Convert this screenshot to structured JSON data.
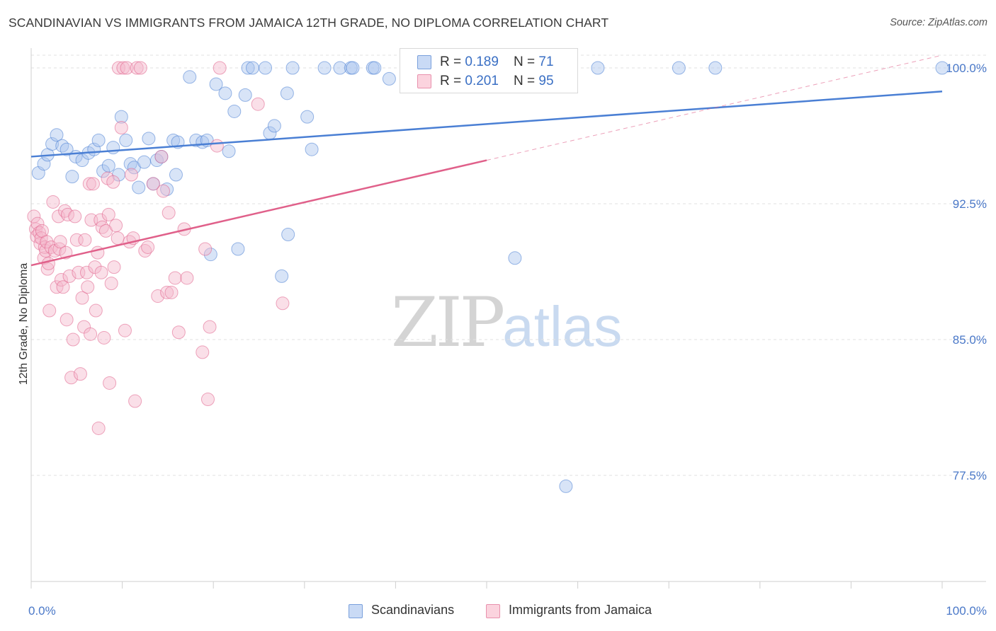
{
  "title": "SCANDINAVIAN VS IMMIGRANTS FROM JAMAICA 12TH GRADE, NO DIPLOMA CORRELATION CHART",
  "source": "Source: ZipAtlas.com",
  "watermark": {
    "zip": "ZIP",
    "atlas": "atlas"
  },
  "legend": {
    "rows": [
      {
        "r_label": "R = ",
        "r_value": "0.189",
        "n_label": "N = ",
        "n_value": "71",
        "color": "#a8c4ee"
      },
      {
        "r_label": "R = ",
        "r_value": "0.201",
        "n_label": "N = ",
        "n_value": "95",
        "color": "#f5b8cb"
      }
    ]
  },
  "bottom_legend": [
    {
      "label": "Scandinavians",
      "color": "#a8c4ee"
    },
    {
      "label": "Immigrants from Jamaica",
      "color": "#f5b8cb"
    }
  ],
  "chart_data": {
    "type": "scatter",
    "title": "SCANDINAVIAN VS IMMIGRANTS FROM JAMAICA 12TH GRADE, NO DIPLOMA CORRELATION CHART",
    "xlabel": "",
    "ylabel": "12th Grade, No Diploma",
    "xlim": [
      0,
      100
    ],
    "ylim": [
      70.0,
      100.8
    ],
    "y_ticks": [
      {
        "value": 100.0,
        "label": "100.0%"
      },
      {
        "value": 92.5,
        "label": "92.5%"
      },
      {
        "value": 85.0,
        "label": "85.0%"
      },
      {
        "value": 77.5,
        "label": "77.5%"
      }
    ],
    "x_tick_labels": [
      {
        "value": 0,
        "label": "0.0%"
      },
      {
        "value": 100,
        "label": "100.0%"
      }
    ],
    "grid": "horizontal dashed",
    "series": [
      {
        "name": "Scandinavians",
        "color": "#4a7fd4",
        "fill": "#a8c4ee",
        "trend": {
          "x0": 0,
          "y0": 95.1,
          "x1": 100,
          "y1": 98.7
        },
        "points": [
          [
            0.8,
            94.2
          ],
          [
            1.4,
            94.7
          ],
          [
            1.8,
            95.2
          ],
          [
            2.3,
            95.8
          ],
          [
            2.8,
            96.3
          ],
          [
            3.4,
            95.7
          ],
          [
            3.9,
            95.5
          ],
          [
            4.5,
            94.0
          ],
          [
            4.9,
            95.1
          ],
          [
            5.6,
            94.9
          ],
          [
            6.3,
            95.3
          ],
          [
            6.9,
            95.5
          ],
          [
            7.4,
            96.0
          ],
          [
            7.9,
            94.3
          ],
          [
            8.5,
            94.6
          ],
          [
            9.0,
            95.6
          ],
          [
            9.6,
            94.1
          ],
          [
            9.9,
            97.3
          ],
          [
            10.4,
            96.0
          ],
          [
            10.9,
            94.7
          ],
          [
            11.3,
            94.5
          ],
          [
            11.8,
            93.4
          ],
          [
            12.4,
            94.8
          ],
          [
            12.9,
            96.1
          ],
          [
            13.4,
            93.6
          ],
          [
            13.8,
            94.9
          ],
          [
            14.3,
            95.1
          ],
          [
            14.9,
            93.3
          ],
          [
            15.6,
            96.0
          ],
          [
            15.9,
            94.1
          ],
          [
            16.1,
            95.9
          ],
          [
            17.4,
            99.5
          ],
          [
            18.1,
            96.0
          ],
          [
            18.8,
            95.9
          ],
          [
            19.3,
            96.0
          ],
          [
            19.7,
            89.7
          ],
          [
            20.3,
            99.1
          ],
          [
            21.3,
            98.6
          ],
          [
            21.7,
            95.4
          ],
          [
            22.3,
            97.6
          ],
          [
            22.7,
            90.0
          ],
          [
            23.5,
            98.5
          ],
          [
            23.8,
            100.0
          ],
          [
            24.3,
            100.0
          ],
          [
            25.7,
            100.0
          ],
          [
            26.2,
            96.4
          ],
          [
            26.7,
            96.8
          ],
          [
            27.5,
            88.5
          ],
          [
            28.2,
            90.8
          ],
          [
            28.1,
            98.6
          ],
          [
            28.7,
            100.0
          ],
          [
            30.3,
            97.3
          ],
          [
            30.8,
            95.5
          ],
          [
            32.2,
            100.0
          ],
          [
            33.9,
            100.0
          ],
          [
            35.1,
            100.0
          ],
          [
            35.3,
            100.0
          ],
          [
            37.5,
            100.0
          ],
          [
            37.7,
            100.0
          ],
          [
            39.3,
            99.4
          ],
          [
            41.5,
            100.0
          ],
          [
            43.1,
            100.0
          ],
          [
            46.7,
            100.0
          ],
          [
            51.9,
            100.0
          ],
          [
            53.1,
            89.5
          ],
          [
            52.5,
            100.0
          ],
          [
            58.7,
            76.9
          ],
          [
            62.2,
            100.0
          ],
          [
            71.1,
            100.0
          ],
          [
            75.1,
            100.0
          ],
          [
            100.0,
            100.0
          ]
        ]
      },
      {
        "name": "Immigrants from Jamaica",
        "color": "#e0608a",
        "fill": "#f5b8cb",
        "trend": {
          "x0": 0,
          "y0": 89.1,
          "x1": 50,
          "y1": 94.9
        },
        "trend_extension": {
          "x0": 50,
          "y0": 94.9,
          "x1": 100,
          "y1": 100.7
        },
        "points": [
          [
            0.3,
            91.8
          ],
          [
            0.5,
            91.1
          ],
          [
            0.6,
            90.7
          ],
          [
            0.7,
            91.4
          ],
          [
            0.9,
            90.9
          ],
          [
            1.0,
            90.3
          ],
          [
            1.1,
            90.6
          ],
          [
            1.2,
            91.0
          ],
          [
            1.4,
            89.5
          ],
          [
            1.5,
            90.1
          ],
          [
            1.6,
            89.9
          ],
          [
            1.7,
            90.4
          ],
          [
            1.8,
            88.9
          ],
          [
            1.9,
            89.2
          ],
          [
            2.0,
            86.6
          ],
          [
            2.2,
            90.1
          ],
          [
            2.4,
            92.6
          ],
          [
            2.6,
            89.9
          ],
          [
            2.8,
            87.9
          ],
          [
            3.0,
            91.8
          ],
          [
            3.1,
            90.0
          ],
          [
            3.2,
            90.4
          ],
          [
            3.3,
            88.3
          ],
          [
            3.5,
            87.9
          ],
          [
            3.7,
            92.1
          ],
          [
            3.8,
            89.8
          ],
          [
            3.9,
            86.1
          ],
          [
            4.0,
            91.9
          ],
          [
            4.2,
            88.5
          ],
          [
            4.4,
            82.9
          ],
          [
            4.6,
            85.0
          ],
          [
            4.8,
            91.8
          ],
          [
            5.0,
            90.5
          ],
          [
            5.2,
            88.7
          ],
          [
            5.4,
            83.1
          ],
          [
            5.6,
            87.3
          ],
          [
            5.8,
            85.7
          ],
          [
            5.9,
            90.5
          ],
          [
            6.1,
            88.7
          ],
          [
            6.2,
            87.9
          ],
          [
            6.4,
            93.6
          ],
          [
            6.5,
            85.3
          ],
          [
            6.6,
            91.6
          ],
          [
            6.8,
            93.6
          ],
          [
            7.0,
            89.0
          ],
          [
            7.1,
            86.6
          ],
          [
            7.3,
            89.8
          ],
          [
            7.4,
            80.1
          ],
          [
            7.6,
            91.6
          ],
          [
            7.7,
            88.7
          ],
          [
            7.8,
            91.2
          ],
          [
            8.0,
            85.1
          ],
          [
            8.2,
            91.0
          ],
          [
            8.4,
            93.9
          ],
          [
            8.5,
            91.9
          ],
          [
            8.6,
            82.6
          ],
          [
            8.8,
            88.1
          ],
          [
            9.0,
            93.7
          ],
          [
            9.1,
            89.0
          ],
          [
            9.3,
            91.3
          ],
          [
            9.5,
            90.6
          ],
          [
            9.6,
            100.0
          ],
          [
            9.9,
            96.7
          ],
          [
            10.1,
            100.0
          ],
          [
            10.3,
            85.5
          ],
          [
            10.5,
            100.0
          ],
          [
            10.8,
            90.4
          ],
          [
            11.0,
            94.1
          ],
          [
            11.2,
            90.6
          ],
          [
            11.4,
            81.6
          ],
          [
            11.6,
            100.0
          ],
          [
            12.0,
            100.0
          ],
          [
            12.5,
            89.9
          ],
          [
            12.8,
            90.1
          ],
          [
            13.4,
            93.6
          ],
          [
            13.9,
            87.4
          ],
          [
            14.3,
            95.1
          ],
          [
            14.5,
            93.2
          ],
          [
            14.9,
            87.6
          ],
          [
            15.1,
            92.0
          ],
          [
            15.4,
            87.6
          ],
          [
            15.8,
            88.4
          ],
          [
            16.2,
            85.4
          ],
          [
            16.8,
            91.1
          ],
          [
            17.1,
            88.4
          ],
          [
            18.8,
            84.3
          ],
          [
            19.1,
            90.0
          ],
          [
            19.4,
            81.7
          ],
          [
            19.6,
            85.7
          ],
          [
            20.4,
            95.7
          ],
          [
            20.7,
            100.0
          ],
          [
            24.9,
            98.0
          ],
          [
            27.6,
            87.0
          ],
          [
            42.1,
            100.0
          ],
          [
            42.7,
            100.0
          ]
        ]
      }
    ]
  }
}
